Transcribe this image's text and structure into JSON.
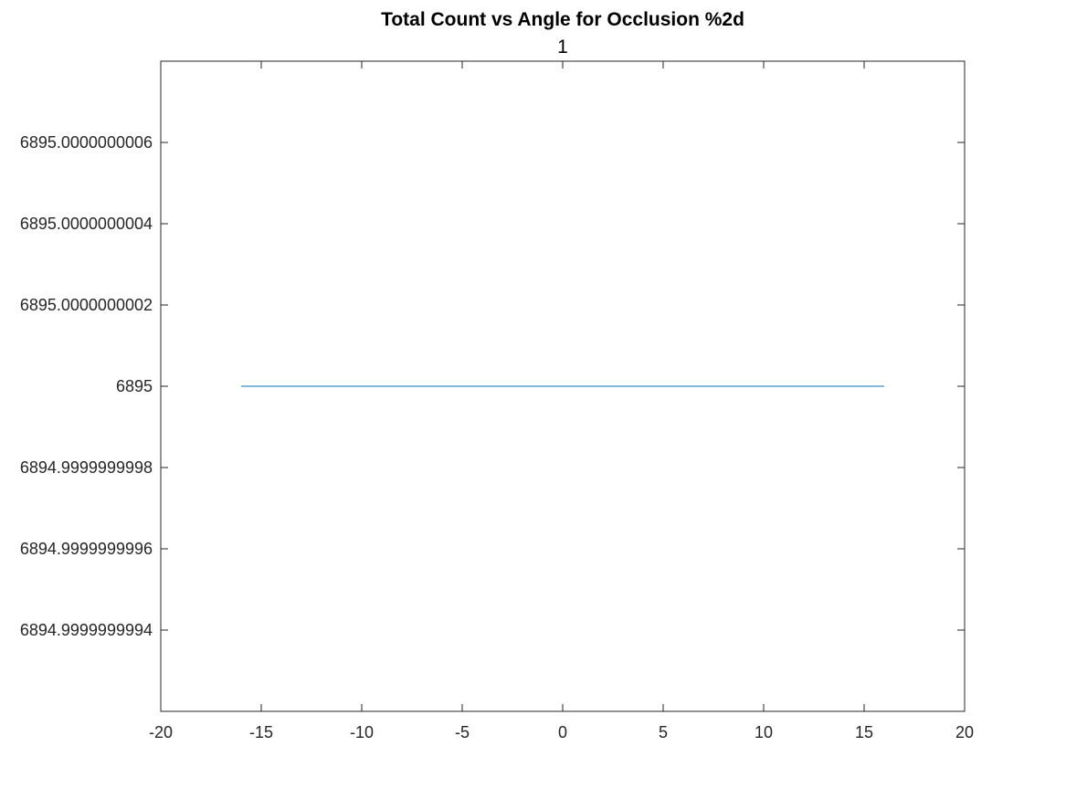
{
  "chart_data": {
    "type": "line",
    "title": "Total Count vs Angle for Occlusion %2d",
    "subtitle": "1",
    "xlabel": "",
    "ylabel": "",
    "xlim": [
      -20,
      20
    ],
    "ylim": [
      6894.99999999992,
      6895.00000000008
    ],
    "xticks": [
      -20,
      -15,
      -10,
      -5,
      0,
      5,
      10,
      15,
      20
    ],
    "xtick_labels": [
      "-20",
      "-15",
      "-10",
      "-5",
      "0",
      "5",
      "10",
      "15",
      "20"
    ],
    "yticks": [
      6895.0000000006,
      6895.0000000004,
      6895.0000000002,
      6895,
      6894.9999999998,
      6894.9999999996,
      6894.9999999994
    ],
    "ytick_labels": [
      "6895.0000000006",
      "6895.0000000004",
      "6895.0000000002",
      "6895",
      "6894.9999999998",
      "6894.9999999996",
      "6894.9999999994"
    ],
    "ytick_offsets": [
      6e-10,
      4e-10,
      2e-10,
      0,
      -2e-10,
      -4e-10,
      -6e-10
    ],
    "y_offset_range": [
      -8e-10,
      8e-10
    ],
    "grid": false,
    "series": [
      {
        "color": "#0072BD",
        "x": [
          -16,
          -15,
          -14,
          -13,
          -12,
          -11,
          -10,
          -9,
          -8,
          -7,
          -6,
          -5,
          -4,
          -3,
          -2,
          -1,
          0,
          1,
          2,
          3,
          4,
          5,
          6,
          7,
          8,
          9,
          10,
          11,
          12,
          13,
          14,
          15,
          16
        ],
        "y": [
          6895,
          6895,
          6895,
          6895,
          6895,
          6895,
          6895,
          6895,
          6895,
          6895,
          6895,
          6895,
          6895,
          6895,
          6895,
          6895,
          6895,
          6895,
          6895,
          6895,
          6895,
          6895,
          6895,
          6895,
          6895,
          6895,
          6895,
          6895,
          6895,
          6895,
          6895,
          6895,
          6895
        ]
      }
    ]
  }
}
